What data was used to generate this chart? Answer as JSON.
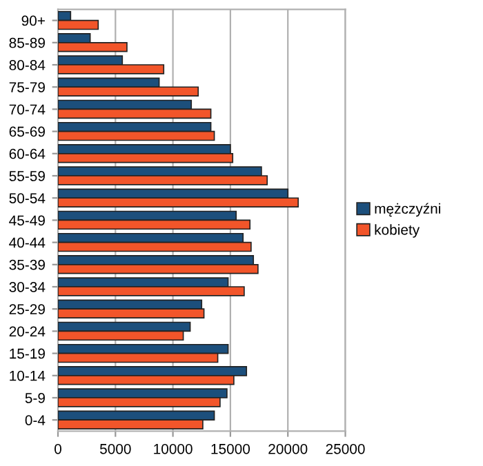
{
  "chart_data": {
    "type": "bar",
    "orientation": "horizontal",
    "categories": [
      "90+",
      "85-89",
      "80-84",
      "75-79",
      "70-74",
      "65-69",
      "60-64",
      "55-59",
      "50-54",
      "45-49",
      "40-44",
      "35-39",
      "30-34",
      "25-29",
      "20-24",
      "15-19",
      "10-14",
      "5-9",
      "0-4"
    ],
    "series": [
      {
        "name": "mężczyźni",
        "color": "#1c4f7c",
        "values": [
          1100,
          2800,
          5600,
          8800,
          11600,
          13300,
          15000,
          17700,
          20000,
          15500,
          16100,
          17000,
          14800,
          12500,
          11500,
          14800,
          16400,
          14700,
          13600
        ]
      },
      {
        "name": "kobiety",
        "color": "#f2552a",
        "values": [
          3500,
          6000,
          9200,
          12200,
          13300,
          13600,
          15200,
          18200,
          20900,
          16700,
          16800,
          17400,
          16200,
          12700,
          10900,
          13900,
          15300,
          14100,
          12600
        ]
      }
    ],
    "xlim": [
      0,
      25000
    ],
    "xticks": [
      0,
      5000,
      10000,
      15000,
      20000,
      25000
    ],
    "grid": "x",
    "legend": "right"
  }
}
